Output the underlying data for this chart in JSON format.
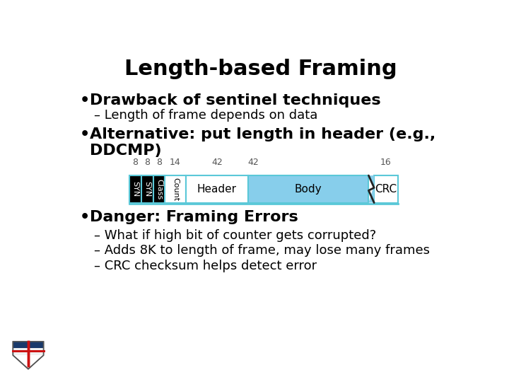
{
  "title": "Length-based Framing",
  "title_fontsize": 22,
  "bg_color": "#ffffff",
  "text_color": "#000000",
  "bullet1_main": "Drawback of sentinel techniques",
  "bullet1_sub": "Length of frame depends on data",
  "bullet2_line1": "Alternative: put length in header (e.g.,",
  "bullet2_line2": "DDCMP)",
  "bullet3_main": "Danger: Framing Errors",
  "bullet3_subs": [
    "What if high bit of counter gets corrupted?",
    "Adds 8K to length of frame, may lose many frames",
    "CRC checksum helps detect error"
  ],
  "frame_segments": [
    {
      "label": "SYN",
      "bits": 8,
      "color": "#000000",
      "text_color": "#ffffff",
      "rotated": true
    },
    {
      "label": "SYN",
      "bits": 8,
      "color": "#000000",
      "text_color": "#ffffff",
      "rotated": true
    },
    {
      "label": "Class",
      "bits": 8,
      "color": "#000000",
      "text_color": "#ffffff",
      "rotated": true
    },
    {
      "label": "Count",
      "bits": 14,
      "color": "#ffffff",
      "text_color": "#000000",
      "rotated": true
    },
    {
      "label": "Header",
      "bits": 42,
      "color": "#ffffff",
      "text_color": "#000000",
      "rotated": false
    },
    {
      "label": "Body",
      "bits": 42,
      "color": "#87ceeb",
      "text_color": "#000000",
      "rotated": false
    },
    {
      "label": "CRC",
      "bits": 16,
      "color": "#ffffff",
      "text_color": "#000000",
      "rotated": false
    }
  ],
  "bit_labels": [
    "8",
    "8",
    "8",
    "14",
    "42",
    "",
    "16"
  ],
  "bit_label_42_pos": "above_body_left",
  "frame_border_color": "#5bc8d8",
  "visual_widths": [
    8,
    8,
    8,
    14,
    42,
    85,
    16
  ]
}
